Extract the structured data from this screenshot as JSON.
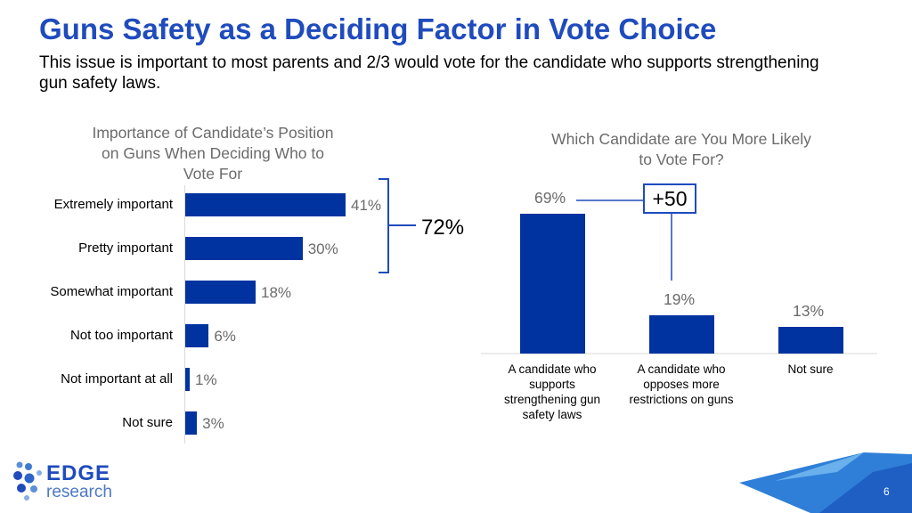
{
  "slide": {
    "title": "Guns Safety as a Deciding Factor in Vote Choice",
    "subtitle": "This issue is important to most parents and 2/3 would vote for the candidate who supports strengthening gun safety laws.",
    "page_number": "6"
  },
  "logo": {
    "line1": "EDGE",
    "line2": "research"
  },
  "colors": {
    "bar": "#0033a0",
    "accent": "#1f4bbd",
    "title": "#1f4bbd",
    "muted": "#6b6b6b"
  },
  "chart_data": [
    {
      "type": "bar",
      "orientation": "horizontal",
      "title_lines": [
        "Importance of Candidate’s Position",
        "on Guns When Deciding Who to",
        "Vote For"
      ],
      "categories": [
        "Extremely important",
        "Pretty important",
        "Somewhat important",
        "Not too important",
        "Not important at all",
        "Not sure"
      ],
      "values": [
        41,
        30,
        18,
        6,
        1,
        3
      ],
      "value_labels": [
        "41%",
        "30%",
        "18%",
        "6%",
        "1%",
        "3%"
      ],
      "annotation": {
        "label": "72%",
        "spans": [
          "Extremely important",
          "Pretty important"
        ]
      }
    },
    {
      "type": "bar",
      "orientation": "vertical",
      "title_lines": [
        "Which Candidate are You More Likely",
        "to Vote For?"
      ],
      "categories": [
        [
          "A candidate who",
          "supports",
          "strengthening gun",
          "safety laws"
        ],
        [
          "A candidate who",
          "opposes more",
          "restrictions on guns"
        ],
        [
          "Not sure"
        ]
      ],
      "values": [
        69,
        19,
        13
      ],
      "value_labels": [
        "69%",
        "19%",
        "13%"
      ],
      "annotation": {
        "label": "+50"
      }
    }
  ]
}
